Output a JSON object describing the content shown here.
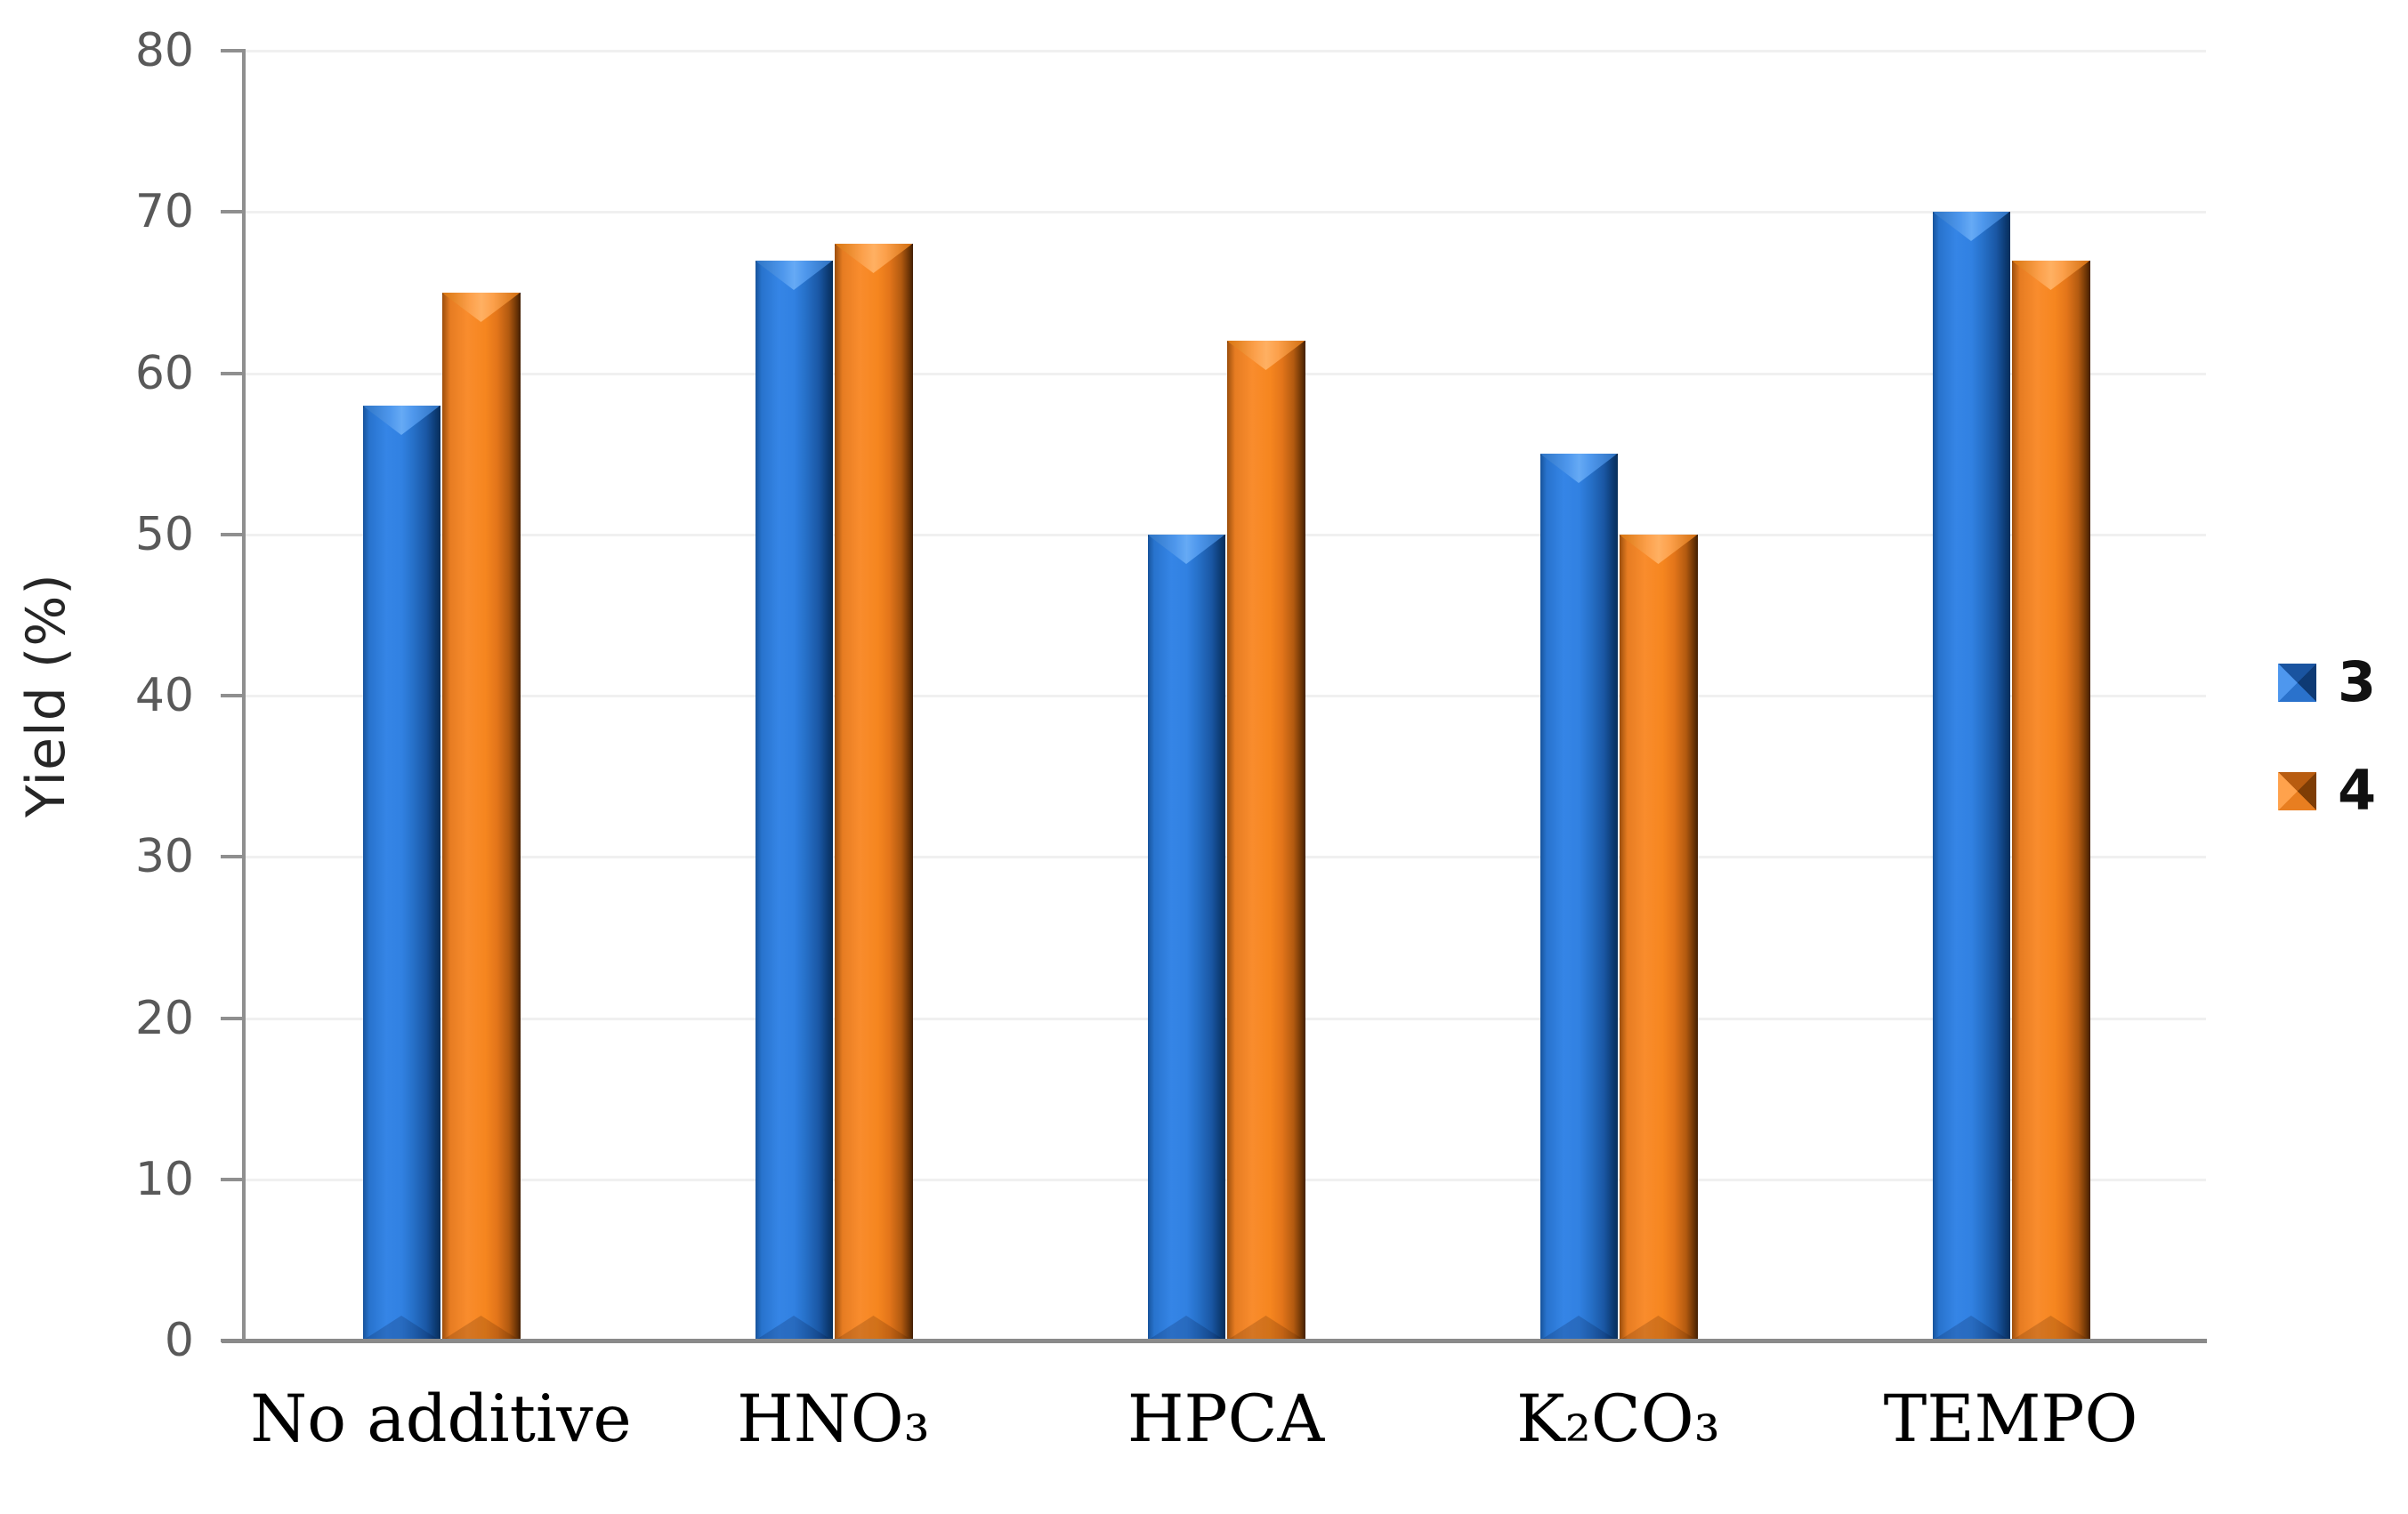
{
  "figure": {
    "background": "#ffffff"
  },
  "chart_data": {
    "type": "bar",
    "title": "",
    "xlabel": "",
    "ylabel": "Yield (%)",
    "categories": [
      "No additive",
      "HNO₃",
      "HPCA",
      "K₂CO₃",
      "TEMPO"
    ],
    "series": [
      {
        "name": "3",
        "color": "#2b7ce0",
        "values": [
          58,
          67,
          50,
          55,
          70
        ]
      },
      {
        "name": "4",
        "color": "#f0811f",
        "values": [
          65,
          68,
          62,
          50,
          67
        ]
      }
    ],
    "ylim": [
      0,
      80
    ],
    "yticks": [
      0,
      10,
      20,
      30,
      40,
      50,
      60,
      70,
      80
    ],
    "grid": true,
    "legend_position": "right"
  },
  "colors": {
    "axis_line": "#8f8f8f",
    "gridline": "#f0f0f0",
    "ytick_label": "#595959",
    "xtick_label": "#000000",
    "axis_title": "#262626",
    "legend_label": "#111111"
  }
}
